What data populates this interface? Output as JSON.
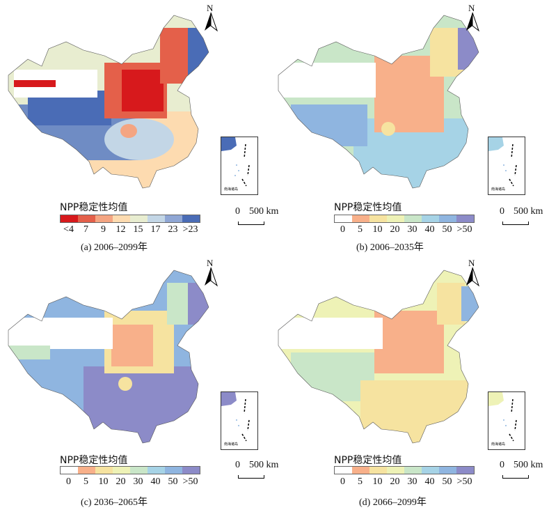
{
  "north_label": "N",
  "scale": {
    "zero": "0",
    "distance": "500 km"
  },
  "inset_label": "南海诸岛",
  "legends": {
    "a": {
      "title": "NPP稳定性均值",
      "labels": [
        "<4",
        "7",
        "9",
        "12",
        "15",
        "17",
        "23",
        ">23"
      ],
      "colors": [
        "#d7191c",
        "#e4604a",
        "#f4a582",
        "#fddbb0",
        "#e8edd0",
        "#c3d6e6",
        "#8fa6d4",
        "#4a6cb6"
      ]
    },
    "bcd": {
      "title": "NPP稳定性均值",
      "labels": [
        "0",
        "5",
        "10",
        "20",
        "30",
        "40",
        "50",
        ">50"
      ],
      "colors": [
        "#ffffff",
        "#f8b08a",
        "#f6e3a0",
        "#eef2b6",
        "#c9e6c8",
        "#a6d3e6",
        "#8fb5e0",
        "#8c8bc8"
      ]
    }
  },
  "panels": [
    {
      "id": "a",
      "caption": "(a) 2006–2099年"
    },
    {
      "id": "b",
      "caption": "(b) 2006–2035年"
    },
    {
      "id": "c",
      "caption": "(c) 2036–2065年"
    },
    {
      "id": "d",
      "caption": "(d) 2066–2099年"
    }
  ]
}
